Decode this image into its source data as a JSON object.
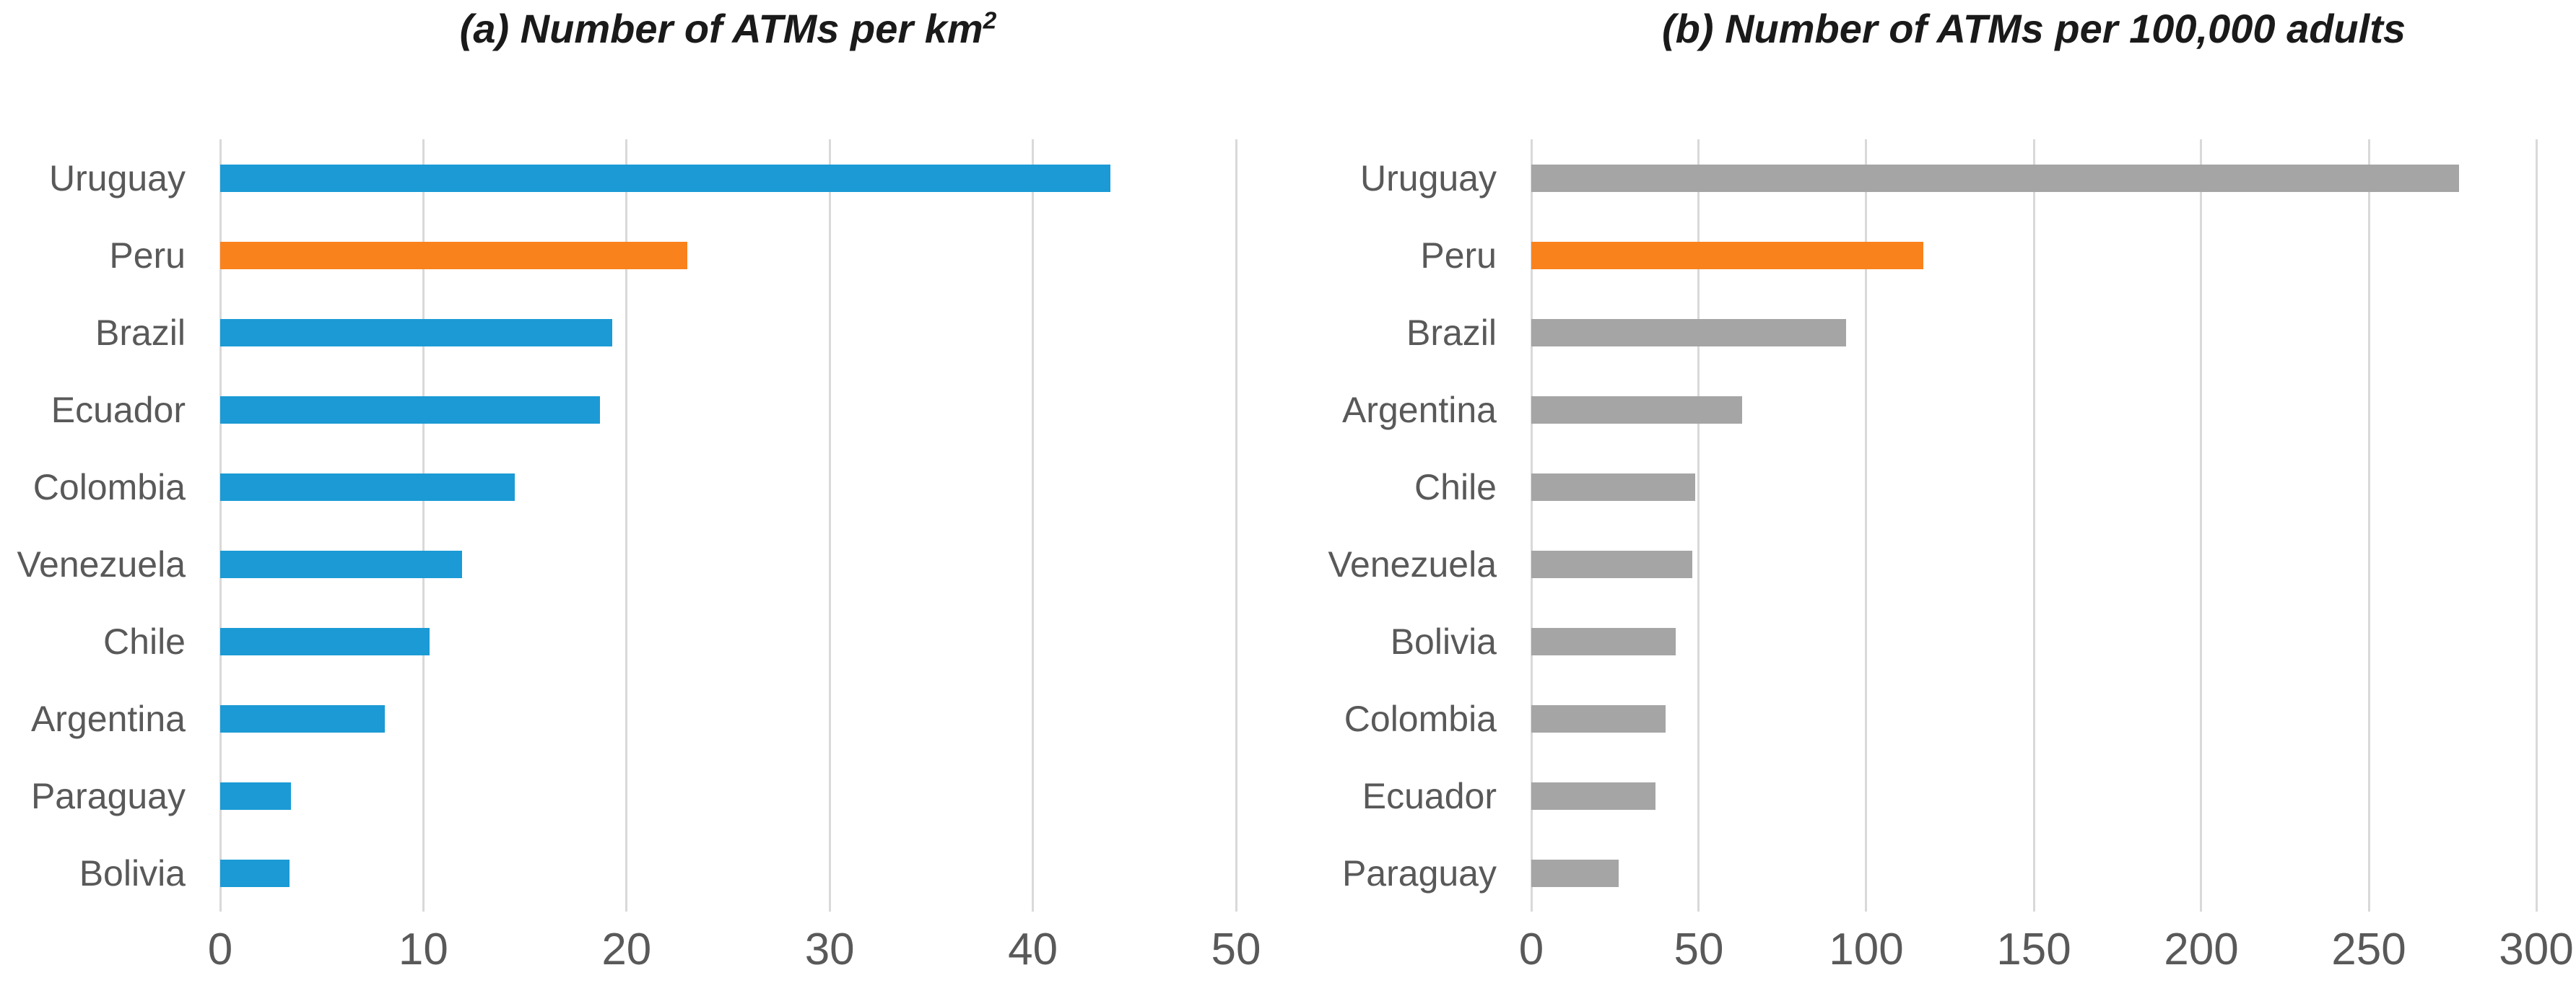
{
  "page": {
    "background": "#ffffff"
  },
  "chart_data": [
    {
      "type": "bar",
      "orientation": "horizontal",
      "title": "(a) Number of ATMs per km",
      "title_sup": "2",
      "categories": [
        "Uruguay",
        "Peru",
        "Brazil",
        "Ecuador",
        "Colombia",
        "Venezuela",
        "Chile",
        "Argentina",
        "Paraguay",
        "Bolivia"
      ],
      "values": [
        43.8,
        23,
        19.3,
        18.7,
        14.5,
        11.9,
        10.3,
        8.1,
        3.5,
        3.4
      ],
      "xlim": [
        0,
        50
      ],
      "xticks": [
        0,
        10,
        20,
        30,
        40,
        50
      ],
      "grid": true,
      "legend": "none",
      "bar_color": "#1B9AD5",
      "highlight_category": "Peru",
      "highlight_color": "#F9821D",
      "gridline_color": "#D9D9D9",
      "label_color": "#595959",
      "title_color": "#1a1a1a"
    },
    {
      "type": "bar",
      "orientation": "horizontal",
      "title": "(b) Number of ATMs per 100,000 adults",
      "title_sup": "",
      "categories": [
        "Uruguay",
        "Peru",
        "Brazil",
        "Argentina",
        "Chile",
        "Venezuela",
        "Bolivia",
        "Colombia",
        "Ecuador",
        "Paraguay"
      ],
      "values": [
        277,
        117,
        94,
        63,
        49,
        48,
        43,
        40,
        37,
        26
      ],
      "xlim": [
        0,
        300
      ],
      "xticks": [
        0,
        50,
        100,
        150,
        200,
        250,
        300
      ],
      "grid": true,
      "legend": "none",
      "bar_color": "#A5A5A5",
      "highlight_category": "Peru",
      "highlight_color": "#F9821D",
      "gridline_color": "#D9D9D9",
      "label_color": "#595959",
      "title_color": "#1a1a1a"
    }
  ]
}
